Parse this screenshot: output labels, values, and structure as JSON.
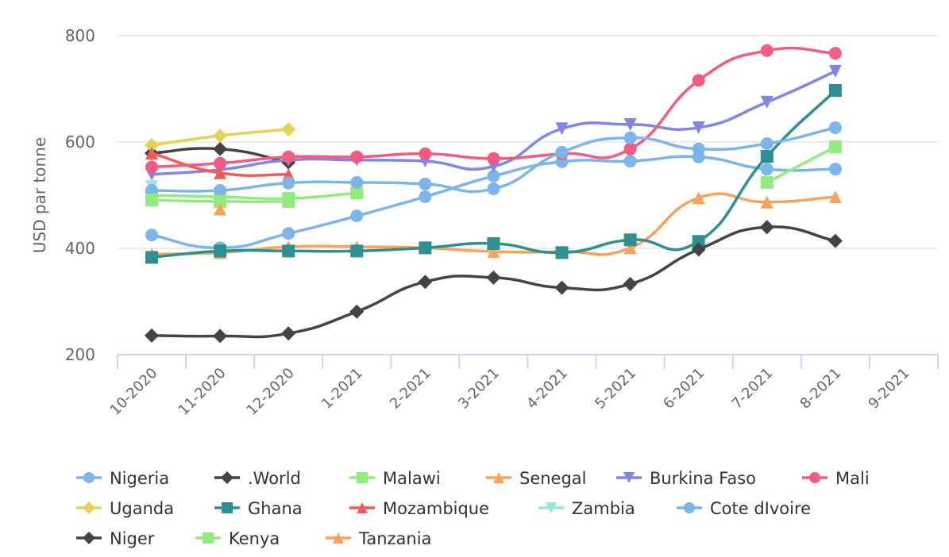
{
  "chart_data": {
    "type": "line",
    "title": "",
    "xlabel": "",
    "ylabel": "USD par tonne",
    "ylim": [
      200,
      800
    ],
    "yticks": [
      200,
      400,
      600,
      800
    ],
    "grid": true,
    "legend_position": "bottom",
    "categories": [
      "10-2020",
      "11-2020",
      "12-2020",
      "1-2021",
      "2-2021",
      "3-2021",
      "4-2021",
      "5-2021",
      "6-2021",
      "7-2021",
      "8-2021",
      "9-2021"
    ],
    "series": [
      {
        "name": "Nigeria",
        "color": "#7cb5ec",
        "marker": "circle",
        "values": [
          425,
          401,
          428,
          461,
          497,
          536,
          563,
          564,
          572,
          549,
          549,
          null
        ]
      },
      {
        "name": ".World",
        "color": "#434348",
        "marker": "diamond",
        "values": [
          579,
          587,
          562,
          null,
          null,
          null,
          null,
          null,
          null,
          null,
          null,
          null
        ]
      },
      {
        "name": "Malawi",
        "color": "#90ed7d",
        "marker": "square",
        "values": [
          500,
          497,
          494,
          504,
          null,
          null,
          null,
          null,
          null,
          null,
          null,
          null
        ]
      },
      {
        "name": "Senegal",
        "color": "#f7a35c",
        "marker": "triangle",
        "values": [
          389,
          392,
          403,
          403,
          401,
          394,
          394,
          401,
          495,
          487,
          497,
          null
        ]
      },
      {
        "name": "Burkina Faso",
        "color": "#8085e9",
        "marker": "triangle-down",
        "values": [
          539,
          548,
          566,
          566,
          564,
          554,
          625,
          633,
          627,
          675,
          733,
          null
        ]
      },
      {
        "name": "Mali",
        "color": "#f15c80",
        "marker": "circle",
        "values": [
          553,
          560,
          572,
          572,
          578,
          569,
          578,
          587,
          716,
          772,
          767,
          null
        ]
      },
      {
        "name": "Uganda",
        "color": "#e4d354",
        "marker": "diamond",
        "values": [
          594,
          612,
          624,
          null,
          null,
          null,
          null,
          null,
          null,
          null,
          null,
          null
        ]
      },
      {
        "name": "Ghana",
        "color": "#2b908f",
        "marker": "square",
        "values": [
          383,
          395,
          395,
          395,
          401,
          409,
          392,
          416,
          413,
          573,
          697,
          null
        ]
      },
      {
        "name": "Mozambique",
        "color": "#f45b5b",
        "marker": "triangle",
        "values": [
          579,
          542,
          539,
          null,
          null,
          null,
          null,
          null,
          null,
          null,
          null,
          null
        ]
      },
      {
        "name": "Zambia",
        "color": "#91e8e1",
        "marker": "triangle-down",
        "values": [
          516,
          null,
          null,
          null,
          null,
          null,
          null,
          null,
          null,
          null,
          null,
          null
        ]
      },
      {
        "name": "Cote dIvoire",
        "color": "#7cb5ec",
        "marker": "circle",
        "values": [
          509,
          509,
          523,
          524,
          521,
          512,
          581,
          608,
          587,
          597,
          627,
          null
        ]
      },
      {
        "name": "Niger",
        "color": "#434348",
        "marker": "diamond",
        "values": [
          236,
          235,
          240,
          281,
          337,
          345,
          326,
          333,
          398,
          440,
          414,
          null
        ]
      },
      {
        "name": "Kenya",
        "color": "#90ed7d",
        "marker": "square",
        "values": [
          491,
          488,
          488,
          null,
          null,
          null,
          null,
          null,
          null,
          524,
          591,
          null
        ]
      },
      {
        "name": "Tanzania",
        "color": "#f7a35c",
        "marker": "triangle",
        "values": [
          null,
          474,
          null,
          null,
          null,
          null,
          null,
          null,
          null,
          null,
          null,
          null
        ]
      }
    ]
  }
}
